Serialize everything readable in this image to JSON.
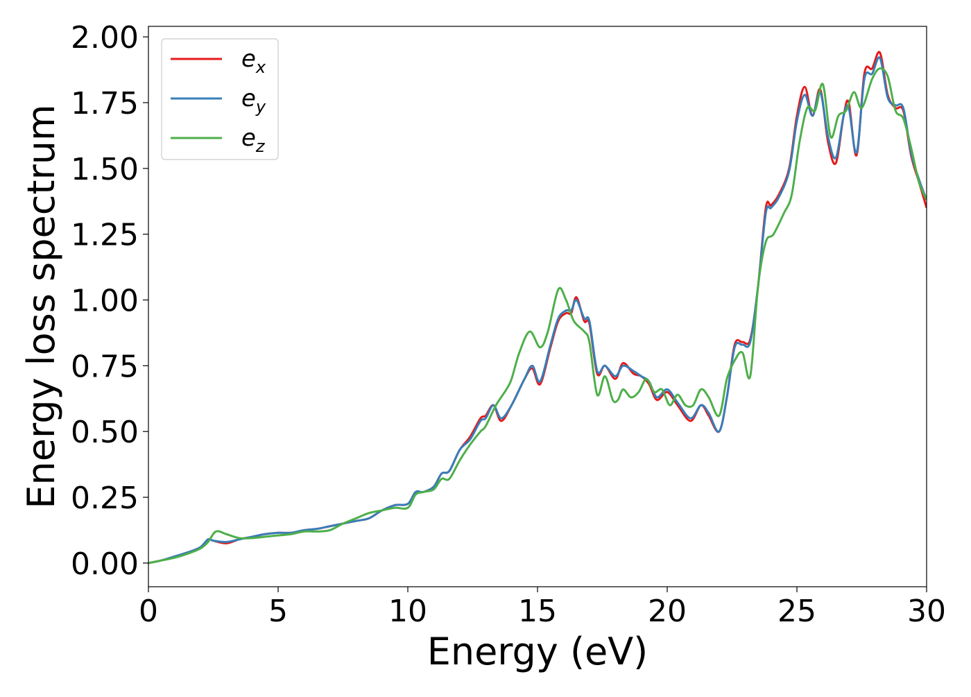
{
  "chart_data": {
    "type": "line",
    "xlabel": "Energy (eV)",
    "ylabel": "Energy loss spectrum",
    "xlim": [
      0,
      30
    ],
    "ylim": [
      -0.09,
      2.04
    ],
    "xticks": [
      0,
      5,
      10,
      15,
      20,
      25,
      30
    ],
    "xtick_labels": [
      "0",
      "5",
      "10",
      "15",
      "20",
      "25",
      "30"
    ],
    "yticks": [
      0.0,
      0.25,
      0.5,
      0.75,
      1.0,
      1.25,
      1.5,
      1.75,
      2.0
    ],
    "ytick_labels": [
      "0.00",
      "0.25",
      "0.50",
      "0.75",
      "1.00",
      "1.25",
      "1.50",
      "1.75",
      "2.00"
    ],
    "grid": false,
    "legend_position": "top-left",
    "series": [
      {
        "name": "e_x",
        "label_base": "e",
        "label_sub": "x",
        "color": "#e41a1c",
        "x": [
          0,
          0.5,
          1,
          1.5,
          2,
          2.3,
          2.5,
          3,
          3.5,
          4,
          4.5,
          5,
          5.5,
          6,
          6.5,
          7,
          7.5,
          8,
          8.5,
          9,
          9.5,
          10,
          10.3,
          10.6,
          11,
          11.3,
          11.6,
          12,
          12.4,
          12.8,
          13,
          13.3,
          13.6,
          14,
          14.5,
          14.8,
          15.1,
          15.5,
          15.8,
          16.1,
          16.3,
          16.5,
          16.8,
          17,
          17.3,
          17.6,
          18,
          18.3,
          18.7,
          19,
          19.3,
          19.6,
          20,
          20.4,
          20.9,
          21.3,
          21.6,
          22,
          22.3,
          22.6,
          22.9,
          23.2,
          23.5,
          23.8,
          24,
          24.3,
          24.7,
          25,
          25.3,
          25.6,
          25.9,
          26.2,
          26.5,
          26.8,
          27,
          27.3,
          27.6,
          27.9,
          28.2,
          28.5,
          28.8,
          29.1,
          29.4,
          29.7,
          30
        ],
        "y": [
          0.0,
          0.01,
          0.025,
          0.04,
          0.06,
          0.09,
          0.085,
          0.075,
          0.09,
          0.1,
          0.11,
          0.115,
          0.115,
          0.125,
          0.13,
          0.14,
          0.15,
          0.16,
          0.17,
          0.2,
          0.22,
          0.225,
          0.27,
          0.27,
          0.29,
          0.34,
          0.35,
          0.43,
          0.48,
          0.55,
          0.56,
          0.6,
          0.54,
          0.6,
          0.7,
          0.74,
          0.68,
          0.82,
          0.92,
          0.95,
          0.95,
          1.01,
          0.92,
          0.91,
          0.72,
          0.75,
          0.7,
          0.76,
          0.72,
          0.71,
          0.68,
          0.62,
          0.65,
          0.6,
          0.54,
          0.6,
          0.56,
          0.5,
          0.63,
          0.83,
          0.84,
          0.85,
          1.05,
          1.35,
          1.36,
          1.4,
          1.5,
          1.7,
          1.81,
          1.7,
          1.8,
          1.6,
          1.52,
          1.7,
          1.75,
          1.55,
          1.86,
          1.88,
          1.94,
          1.78,
          1.73,
          1.72,
          1.55,
          1.45,
          1.35
        ]
      },
      {
        "name": "e_y",
        "label_base": "e",
        "label_sub": "y",
        "color": "#377eb8",
        "x": [
          0,
          0.5,
          1,
          1.5,
          2,
          2.3,
          2.5,
          3,
          3.5,
          4,
          4.5,
          5,
          5.5,
          6,
          6.5,
          7,
          7.5,
          8,
          8.5,
          9,
          9.5,
          10,
          10.3,
          10.6,
          11,
          11.3,
          11.6,
          12,
          12.4,
          12.8,
          13,
          13.3,
          13.6,
          14,
          14.5,
          14.8,
          15.1,
          15.5,
          15.8,
          16.1,
          16.3,
          16.5,
          16.8,
          17,
          17.3,
          17.6,
          18,
          18.3,
          18.7,
          19,
          19.3,
          19.6,
          20,
          20.4,
          20.9,
          21.3,
          21.6,
          22,
          22.3,
          22.6,
          22.9,
          23.2,
          23.5,
          23.8,
          24,
          24.3,
          24.7,
          25,
          25.3,
          25.6,
          25.9,
          26.2,
          26.5,
          26.8,
          27,
          27.3,
          27.6,
          27.9,
          28.2,
          28.5,
          28.8,
          29.1,
          29.4,
          29.7,
          30
        ],
        "y": [
          0.0,
          0.01,
          0.025,
          0.04,
          0.06,
          0.09,
          0.085,
          0.08,
          0.09,
          0.1,
          0.11,
          0.115,
          0.115,
          0.125,
          0.13,
          0.14,
          0.15,
          0.16,
          0.17,
          0.2,
          0.22,
          0.225,
          0.27,
          0.27,
          0.29,
          0.34,
          0.35,
          0.43,
          0.47,
          0.54,
          0.55,
          0.6,
          0.55,
          0.6,
          0.7,
          0.75,
          0.69,
          0.83,
          0.93,
          0.96,
          0.96,
          1.0,
          0.93,
          0.92,
          0.73,
          0.75,
          0.71,
          0.75,
          0.73,
          0.71,
          0.69,
          0.63,
          0.66,
          0.61,
          0.55,
          0.6,
          0.57,
          0.5,
          0.63,
          0.82,
          0.83,
          0.84,
          1.05,
          1.33,
          1.35,
          1.39,
          1.49,
          1.68,
          1.78,
          1.7,
          1.79,
          1.62,
          1.54,
          1.7,
          1.73,
          1.56,
          1.84,
          1.86,
          1.92,
          1.77,
          1.74,
          1.73,
          1.56,
          1.46,
          1.38
        ]
      },
      {
        "name": "e_z",
        "label_base": "e",
        "label_sub": "z",
        "color": "#4daf4a",
        "x": [
          0,
          0.5,
          1,
          1.5,
          2,
          2.3,
          2.6,
          3,
          3.5,
          4,
          4.5,
          5,
          5.5,
          6,
          6.5,
          7,
          7.5,
          8,
          8.5,
          9,
          9.5,
          10,
          10.3,
          10.6,
          11,
          11.3,
          11.6,
          12,
          12.4,
          12.8,
          13,
          13.4,
          13.8,
          14,
          14.3,
          14.7,
          15.1,
          15.4,
          15.8,
          16.1,
          16.4,
          16.8,
          17,
          17.3,
          17.6,
          17.9,
          18.1,
          18.3,
          18.6,
          18.9,
          19.2,
          19.5,
          19.8,
          20.1,
          20.4,
          20.7,
          21,
          21.3,
          21.6,
          22,
          22.3,
          22.6,
          22.9,
          23.2,
          23.5,
          23.8,
          24.1,
          24.5,
          24.8,
          25.1,
          25.4,
          25.7,
          26,
          26.3,
          26.6,
          26.9,
          27.2,
          27.5,
          27.9,
          28.2,
          28.5,
          28.8,
          29.1,
          29.4,
          29.7,
          30
        ],
        "y": [
          0.0,
          0.01,
          0.02,
          0.035,
          0.055,
          0.08,
          0.12,
          0.11,
          0.095,
          0.095,
          0.1,
          0.105,
          0.11,
          0.12,
          0.12,
          0.125,
          0.15,
          0.17,
          0.19,
          0.2,
          0.21,
          0.21,
          0.26,
          0.27,
          0.28,
          0.32,
          0.32,
          0.39,
          0.45,
          0.5,
          0.52,
          0.6,
          0.66,
          0.7,
          0.8,
          0.88,
          0.82,
          0.88,
          1.04,
          1.0,
          0.92,
          0.88,
          0.84,
          0.64,
          0.71,
          0.62,
          0.62,
          0.66,
          0.63,
          0.65,
          0.7,
          0.65,
          0.66,
          0.6,
          0.64,
          0.6,
          0.6,
          0.66,
          0.63,
          0.56,
          0.7,
          0.77,
          0.8,
          0.71,
          1.05,
          1.22,
          1.25,
          1.33,
          1.4,
          1.6,
          1.73,
          1.72,
          1.82,
          1.62,
          1.7,
          1.72,
          1.79,
          1.73,
          1.84,
          1.88,
          1.85,
          1.72,
          1.69,
          1.58,
          1.45,
          1.38
        ]
      }
    ]
  }
}
